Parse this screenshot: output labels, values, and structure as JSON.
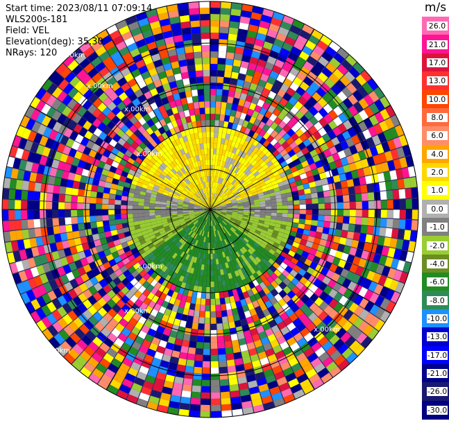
{
  "header": {
    "start_time": "Start time: 2023/08/11 07:09:14",
    "station": "WLS200s-181",
    "field": "Field: VEL",
    "elevation": "Elevation(deg): 35.30",
    "nrays": "NRays: 120"
  },
  "ring_label_text": "x.00km",
  "colorbar": {
    "unit": "m/s",
    "ticks": [
      "26.0",
      "21.0",
      "17.0",
      "13.0",
      "10.0",
      "8.0",
      "6.0",
      "4.0",
      "2.0",
      "1.0",
      "0.0",
      "-1.0",
      "-2.0",
      "-4.0",
      "-6.0",
      "-8.0",
      "-10.0",
      "-13.0",
      "-17.0",
      "-21.0",
      "-26.0",
      "-30.0"
    ],
    "colors": [
      "#ff69b4",
      "#ff1493",
      "#dc143c",
      "#ff3030",
      "#ff4500",
      "#ff6a3d",
      "#ff8c69",
      "#ffa500",
      "#ffd700",
      "#ffff00",
      "#b0b0b0",
      "#808080",
      "#9acd32",
      "#6b8e23",
      "#228b22",
      "#2e8b57",
      "#1e90ff",
      "#0000cd",
      "#0000ff",
      "#00008b",
      "#191970",
      "#000080"
    ]
  }
}
